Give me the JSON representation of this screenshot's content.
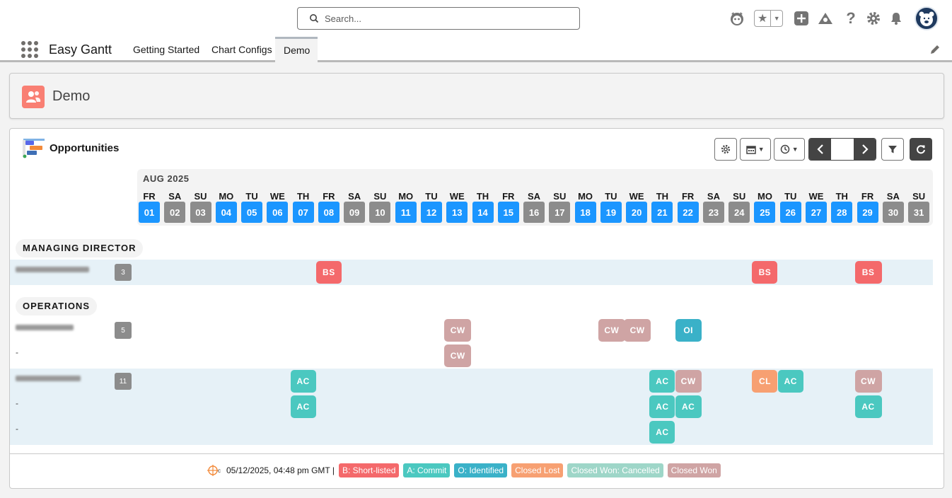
{
  "header": {
    "search_placeholder": "Search...",
    "icons": [
      "astro-icon",
      "star-icon",
      "add-icon",
      "trailhead-icon",
      "help-icon",
      "setup-icon",
      "notification-icon",
      "avatar"
    ]
  },
  "nav": {
    "app_name": "Easy Gantt",
    "tabs": [
      "Getting Started",
      "Chart Configs",
      "Demo"
    ],
    "active_tab": "Demo"
  },
  "page": {
    "title": "Demo"
  },
  "gantt": {
    "title": "Opportunities",
    "month": "AUG 2025",
    "days": [
      {
        "dow": "FR",
        "num": "01",
        "weekend": false
      },
      {
        "dow": "SA",
        "num": "02",
        "weekend": true
      },
      {
        "dow": "SU",
        "num": "03",
        "weekend": true
      },
      {
        "dow": "MO",
        "num": "04",
        "weekend": false
      },
      {
        "dow": "TU",
        "num": "05",
        "weekend": false
      },
      {
        "dow": "WE",
        "num": "06",
        "weekend": false
      },
      {
        "dow": "TH",
        "num": "07",
        "weekend": false
      },
      {
        "dow": "FR",
        "num": "08",
        "weekend": false
      },
      {
        "dow": "SA",
        "num": "09",
        "weekend": true
      },
      {
        "dow": "SU",
        "num": "10",
        "weekend": true
      },
      {
        "dow": "MO",
        "num": "11",
        "weekend": false
      },
      {
        "dow": "TU",
        "num": "12",
        "weekend": false
      },
      {
        "dow": "WE",
        "num": "13",
        "weekend": false
      },
      {
        "dow": "TH",
        "num": "14",
        "weekend": false
      },
      {
        "dow": "FR",
        "num": "15",
        "weekend": false
      },
      {
        "dow": "SA",
        "num": "16",
        "weekend": true
      },
      {
        "dow": "SU",
        "num": "17",
        "weekend": true
      },
      {
        "dow": "MO",
        "num": "18",
        "weekend": false
      },
      {
        "dow": "TU",
        "num": "19",
        "weekend": false
      },
      {
        "dow": "WE",
        "num": "20",
        "weekend": false
      },
      {
        "dow": "TH",
        "num": "21",
        "weekend": false
      },
      {
        "dow": "FR",
        "num": "22",
        "weekend": false
      },
      {
        "dow": "SA",
        "num": "23",
        "weekend": true
      },
      {
        "dow": "SU",
        "num": "24",
        "weekend": true
      },
      {
        "dow": "MO",
        "num": "25",
        "weekend": false
      },
      {
        "dow": "TU",
        "num": "26",
        "weekend": false
      },
      {
        "dow": "WE",
        "num": "27",
        "weekend": false
      },
      {
        "dow": "TH",
        "num": "28",
        "weekend": false
      },
      {
        "dow": "FR",
        "num": "29",
        "weekend": false
      },
      {
        "dow": "SA",
        "num": "30",
        "weekend": true
      },
      {
        "dow": "SU",
        "num": "31",
        "weekend": true
      }
    ],
    "groups": [
      {
        "name": "MANAGING DIRECTOR"
      },
      {
        "name": "OPERATIONS"
      }
    ],
    "people": [
      {
        "count": "3",
        "sublabels": []
      },
      {
        "count": "5",
        "sublabels": [
          "-"
        ]
      },
      {
        "count": "11",
        "sublabels": [
          "-",
          "-"
        ]
      }
    ],
    "tags": [
      {
        "label": "BS",
        "kind": "short"
      },
      {
        "label": "BS",
        "kind": "short"
      },
      {
        "label": "BS",
        "kind": "short"
      },
      {
        "label": "CW",
        "kind": "won"
      },
      {
        "label": "CW",
        "kind": "won"
      },
      {
        "label": "CW",
        "kind": "won"
      },
      {
        "label": "OI",
        "kind": "identified"
      },
      {
        "label": "CW",
        "kind": "won"
      },
      {
        "label": "AC",
        "kind": "commit"
      },
      {
        "label": "AC",
        "kind": "commit"
      },
      {
        "label": "CW",
        "kind": "won"
      },
      {
        "label": "CL",
        "kind": "lost"
      },
      {
        "label": "AC",
        "kind": "commit"
      },
      {
        "label": "CW",
        "kind": "won"
      },
      {
        "label": "AC",
        "kind": "commit"
      },
      {
        "label": "AC",
        "kind": "commit"
      },
      {
        "label": "AC",
        "kind": "commit"
      },
      {
        "label": "AC",
        "kind": "commit"
      },
      {
        "label": "AC",
        "kind": "commit"
      }
    ]
  },
  "footer": {
    "timestamp": "05/12/2025, 04:48 pm GMT |",
    "legend": [
      {
        "label": "B: Short-listed",
        "color": "#f4696b"
      },
      {
        "label": "A: Commit",
        "color": "#4bc8c0"
      },
      {
        "label": "O: Identified",
        "color": "#3ab1c8"
      },
      {
        "label": "Closed Lost",
        "color": "#f7a072"
      },
      {
        "label": "Closed Won: Cancelled",
        "color": "#9ed6c8"
      },
      {
        "label": "Closed Won",
        "color": "#cfa4a4"
      }
    ]
  },
  "colors": {
    "weekday": "#1b96ff",
    "weekend": "#8c8c8c",
    "short": "#f4696b",
    "commit": "#4bc8c0",
    "identified": "#3ab1c8",
    "lost": "#f7a072",
    "won": "#cfa4a4"
  }
}
